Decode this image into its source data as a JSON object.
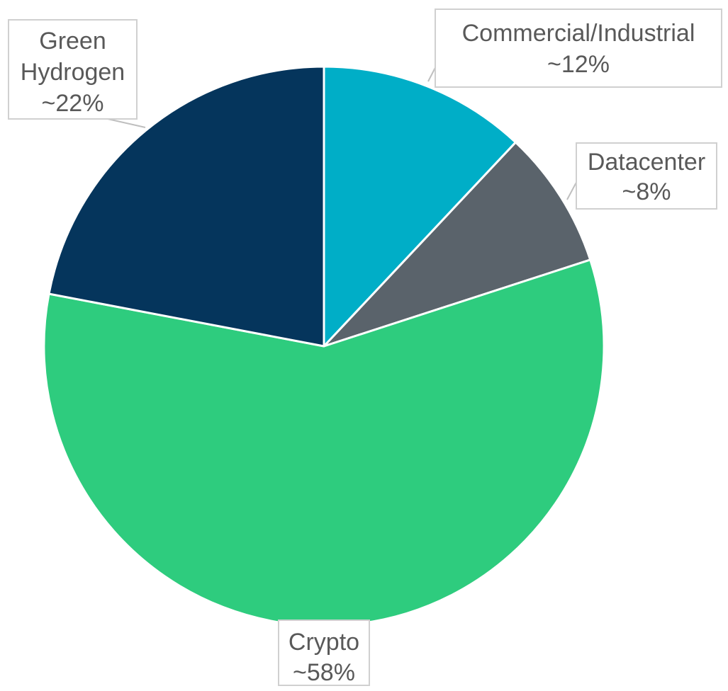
{
  "chart_data": {
    "type": "pie",
    "title": "",
    "slices": [
      {
        "label": "Commercial/Industrial",
        "display": "~12%",
        "value": 12,
        "color": "#00aec7"
      },
      {
        "label": "Datacenter",
        "display": "~8%",
        "value": 8,
        "color": "#5a636b"
      },
      {
        "label": "Crypto",
        "display": "~58%",
        "value": 58,
        "color": "#2ecc7e"
      },
      {
        "label": "Green Hydrogen",
        "display": "~22%",
        "value": 22,
        "color": "#05355c"
      }
    ],
    "start": "12 o'clock",
    "direction": "clockwise",
    "legend": "none",
    "data_labels": "callouts"
  }
}
